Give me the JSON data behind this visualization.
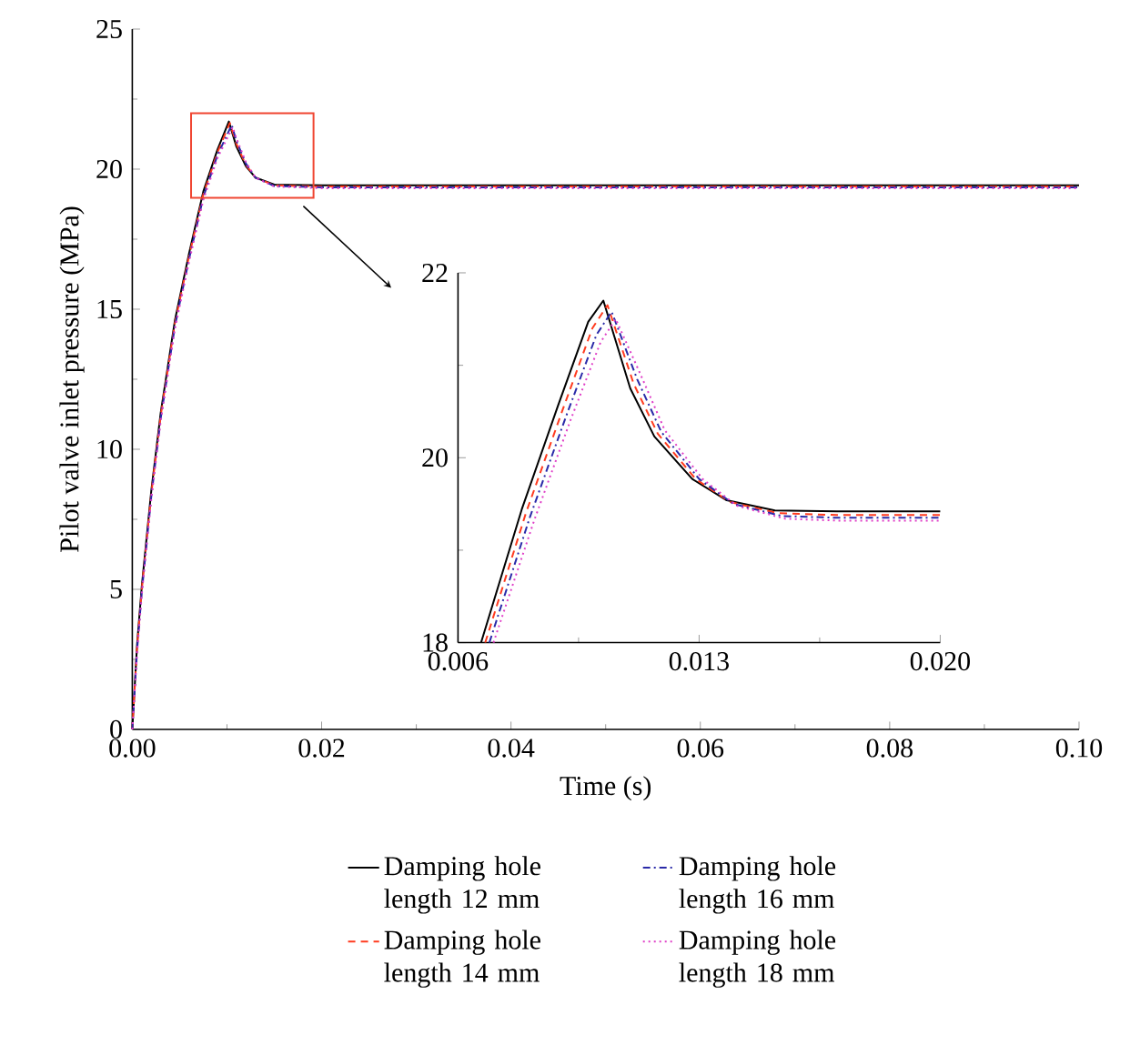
{
  "chart_data": [
    {
      "type": "line",
      "xlabel": "Time (s)",
      "ylabel": "Pilot valve inlet pressure (MPa)",
      "xlim": [
        0,
        0.1
      ],
      "ylim": [
        0,
        25
      ],
      "xticks": [
        {
          "value": 0,
          "label": "0.00"
        },
        {
          "value": 0.02,
          "label": "0.02"
        },
        {
          "value": 0.04,
          "label": "0.04"
        },
        {
          "value": 0.06,
          "label": "0.06"
        },
        {
          "value": 0.08,
          "label": "0.08"
        },
        {
          "value": 0.1,
          "label": "0.10"
        }
      ],
      "yticks": [
        0,
        5,
        10,
        15,
        20,
        25
      ],
      "grid": false,
      "legend": "bottom",
      "series": [
        {
          "name": "Damping hole length 12 mm",
          "color": "#000000",
          "line_style": "solid",
          "x": [
            0,
            0.0005,
            0.001,
            0.002,
            0.003,
            0.0045,
            0.006,
            0.0075,
            0.009,
            0.0102,
            0.011,
            0.012,
            0.013,
            0.015,
            0.02,
            0.05,
            0.1
          ],
          "values": [
            0,
            3.0,
            5.1,
            8.5,
            11.3,
            14.6,
            17.0,
            19.2,
            20.7,
            21.7,
            20.8,
            20.1,
            19.7,
            19.45,
            19.42,
            19.42,
            19.42
          ]
        },
        {
          "name": "Damping hole length 14 mm",
          "color": "#ff3b1f",
          "line_style": "dashed",
          "x": [
            0,
            0.0005,
            0.001,
            0.002,
            0.003,
            0.0045,
            0.006,
            0.0075,
            0.009,
            0.0103,
            0.011,
            0.012,
            0.013,
            0.015,
            0.02,
            0.05,
            0.1
          ],
          "values": [
            0,
            2.9,
            5.0,
            8.4,
            11.2,
            14.5,
            16.9,
            19.1,
            20.6,
            21.65,
            20.9,
            20.15,
            19.7,
            19.42,
            19.38,
            19.38,
            19.38
          ]
        },
        {
          "name": "Damping hole length 16 mm",
          "color": "#2a2aa8",
          "line_style": "dashdot",
          "x": [
            0,
            0.0005,
            0.001,
            0.002,
            0.003,
            0.0045,
            0.006,
            0.0075,
            0.009,
            0.0105,
            0.011,
            0.012,
            0.013,
            0.015,
            0.02,
            0.05,
            0.1
          ],
          "values": [
            0,
            2.8,
            4.9,
            8.3,
            11.1,
            14.4,
            16.8,
            19.0,
            20.5,
            21.58,
            21.0,
            20.2,
            19.7,
            19.4,
            19.35,
            19.35,
            19.35
          ]
        },
        {
          "name": "Damping hole length 18 mm",
          "color": "#e040c8",
          "line_style": "dotted",
          "x": [
            0,
            0.0005,
            0.001,
            0.002,
            0.003,
            0.0045,
            0.006,
            0.0075,
            0.009,
            0.0106,
            0.011,
            0.012,
            0.013,
            0.015,
            0.02,
            0.05,
            0.1
          ],
          "values": [
            0,
            2.7,
            4.8,
            8.2,
            11.0,
            14.3,
            16.7,
            18.9,
            20.4,
            21.5,
            21.1,
            20.25,
            19.7,
            19.38,
            19.32,
            19.32,
            19.32
          ]
        }
      ]
    },
    {
      "type": "line",
      "xlim": [
        0.006,
        0.02
      ],
      "ylim": [
        18,
        22
      ],
      "xticks": [
        {
          "value": 0.006,
          "label": "0.006"
        },
        {
          "value": 0.013,
          "label": "0.013"
        },
        {
          "value": 0.02,
          "label": "0.020"
        }
      ],
      "yticks": [
        18,
        20,
        22
      ],
      "grid": false,
      "series": [
        {
          "color": "#000000",
          "line_style": "solid",
          "x": [
            0.00667,
            0.00785,
            0.0089,
            0.00978,
            0.01022,
            0.011,
            0.0117,
            0.0128,
            0.0138,
            0.0152,
            0.017,
            0.02
          ],
          "values": [
            18,
            19.44,
            20.56,
            21.47,
            21.7,
            20.75,
            20.23,
            19.77,
            19.54,
            19.43,
            19.42,
            19.42
          ]
        },
        {
          "color": "#ff3b1f",
          "line_style": "dashed",
          "x": [
            0.00679,
            0.00797,
            0.00902,
            0.0099,
            0.01034,
            0.0111,
            0.0118,
            0.0129,
            0.0139,
            0.0153,
            0.017,
            0.02
          ],
          "values": [
            18,
            19.4,
            20.5,
            21.4,
            21.65,
            20.8,
            20.26,
            19.77,
            19.52,
            19.4,
            19.38,
            19.38
          ]
        },
        {
          "color": "#2a2aa8",
          "line_style": "dashdot",
          "x": [
            0.00691,
            0.00809,
            0.00914,
            0.01002,
            0.01046,
            0.0112,
            0.0119,
            0.013,
            0.014,
            0.0154,
            0.017,
            0.02
          ],
          "values": [
            18,
            19.36,
            20.45,
            21.33,
            21.58,
            20.85,
            20.28,
            19.77,
            19.5,
            19.37,
            19.35,
            19.35
          ]
        },
        {
          "color": "#e040c8",
          "line_style": "dotted",
          "x": [
            0.00703,
            0.00821,
            0.00926,
            0.01014,
            0.01058,
            0.0113,
            0.012,
            0.0131,
            0.0141,
            0.0155,
            0.017,
            0.02
          ],
          "values": [
            18,
            19.32,
            20.4,
            21.25,
            21.5,
            20.9,
            20.3,
            19.77,
            19.48,
            19.34,
            19.32,
            19.32
          ]
        }
      ]
    }
  ]
}
